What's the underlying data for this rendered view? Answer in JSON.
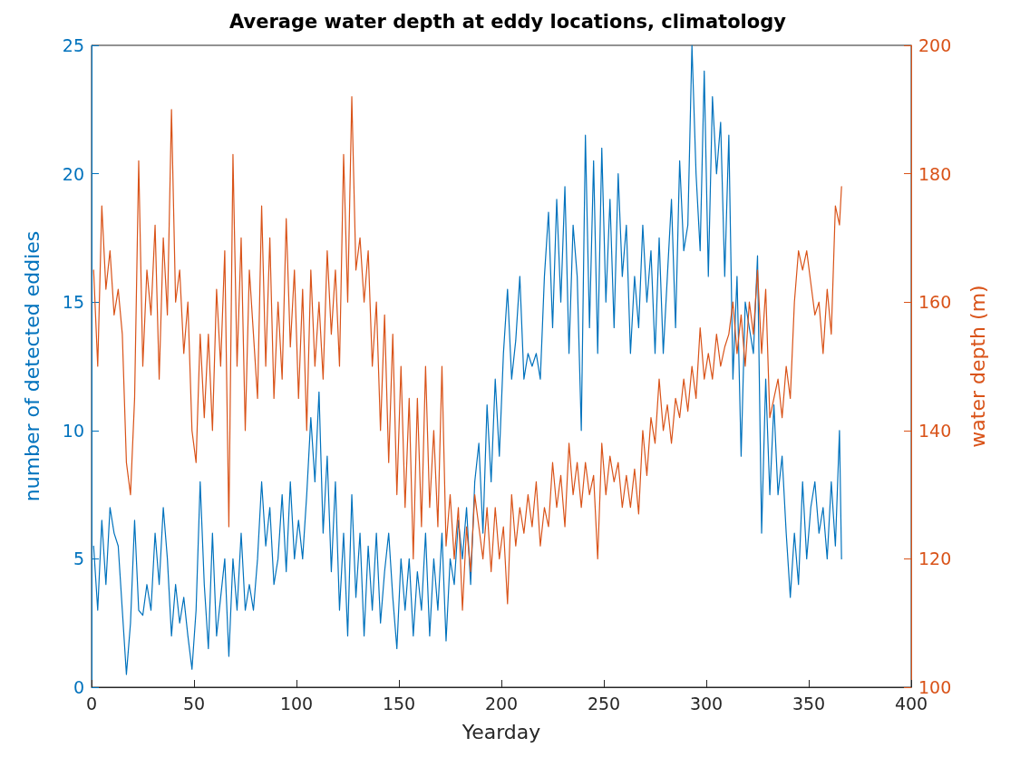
{
  "chart_data": {
    "type": "line",
    "title": "Average water depth at eddy locations, climatology",
    "xlabel": "Yearday",
    "ylabel": "number of detected eddies",
    "y2label": "water depth (m)",
    "x": [
      1,
      3,
      5,
      7,
      9,
      11,
      13,
      15,
      17,
      19,
      21,
      23,
      25,
      27,
      29,
      31,
      33,
      35,
      37,
      39,
      41,
      43,
      45,
      47,
      49,
      51,
      53,
      55,
      57,
      59,
      61,
      63,
      65,
      67,
      69,
      71,
      73,
      75,
      77,
      79,
      81,
      83,
      85,
      87,
      89,
      91,
      93,
      95,
      97,
      99,
      101,
      103,
      105,
      107,
      109,
      111,
      113,
      115,
      117,
      119,
      121,
      123,
      125,
      127,
      129,
      131,
      133,
      135,
      137,
      139,
      141,
      143,
      145,
      147,
      149,
      151,
      153,
      155,
      157,
      159,
      161,
      163,
      165,
      167,
      169,
      171,
      173,
      175,
      177,
      179,
      181,
      183,
      185,
      187,
      189,
      191,
      193,
      195,
      197,
      199,
      201,
      203,
      205,
      207,
      209,
      211,
      213,
      215,
      217,
      219,
      221,
      223,
      225,
      227,
      229,
      231,
      233,
      235,
      237,
      239,
      241,
      243,
      245,
      247,
      249,
      251,
      253,
      255,
      257,
      259,
      261,
      263,
      265,
      267,
      269,
      271,
      273,
      275,
      277,
      279,
      281,
      283,
      285,
      287,
      289,
      291,
      293,
      295,
      297,
      299,
      301,
      303,
      305,
      307,
      309,
      311,
      313,
      315,
      317,
      319,
      321,
      323,
      325,
      327,
      329,
      331,
      333,
      335,
      337,
      339,
      341,
      343,
      345,
      347,
      349,
      351,
      353,
      355,
      357,
      359,
      361,
      363,
      365,
      366
    ],
    "series": [
      {
        "color": "#0072bd",
        "values": [
          5.5,
          3,
          6.5,
          4,
          7,
          6,
          5.5,
          3,
          0.5,
          2.5,
          6.5,
          3,
          2.8,
          4,
          3,
          6,
          4,
          7,
          5,
          2,
          4,
          2.5,
          3.5,
          2,
          0.7,
          3,
          8,
          4,
          1.5,
          6,
          2,
          3.5,
          5,
          1.2,
          5,
          3,
          6,
          3,
          4,
          3,
          5,
          8,
          5.5,
          7,
          4,
          5,
          7.5,
          4.5,
          8,
          5,
          6.5,
          5,
          7.5,
          10.5,
          8,
          11.5,
          6,
          9,
          4.5,
          8,
          3,
          6,
          2,
          7.5,
          3.5,
          6,
          2,
          5.5,
          3,
          6,
          2.5,
          4.5,
          6,
          3.5,
          1.5,
          5,
          3,
          5,
          2,
          4.5,
          3,
          6,
          2,
          5,
          3,
          6,
          1.8,
          5,
          4,
          6.5,
          5,
          7,
          4,
          8,
          9.5,
          6,
          11,
          8,
          12,
          9,
          13,
          15.5,
          12,
          13.5,
          16,
          12,
          13,
          12.5,
          13,
          12,
          16,
          18.5,
          14,
          19,
          15,
          19.5,
          13,
          18,
          16,
          10,
          21.5,
          14,
          20.5,
          13,
          21,
          15,
          19,
          14,
          20,
          16,
          18,
          13,
          16,
          14,
          18,
          15,
          17,
          13,
          17.5,
          13,
          16,
          19,
          14,
          20.5,
          17,
          18,
          25,
          20,
          17,
          24,
          16,
          23,
          20,
          22,
          16,
          21.5,
          12,
          16,
          9,
          15,
          14,
          13,
          16.8,
          6,
          12,
          7.5,
          11,
          7.5,
          9,
          6,
          3.5,
          6,
          4,
          8,
          5,
          7,
          8,
          6,
          7,
          5,
          8,
          5.5,
          10,
          5
        ]
      },
      {
        "color": "#d95319",
        "axis": "y2",
        "values": [
          165,
          150,
          175,
          162,
          168,
          158,
          162,
          155,
          135,
          130,
          145,
          182,
          150,
          165,
          158,
          172,
          148,
          170,
          158,
          190,
          160,
          165,
          152,
          160,
          140,
          135,
          155,
          142,
          155,
          140,
          162,
          150,
          168,
          125,
          183,
          150,
          170,
          140,
          165,
          155,
          145,
          175,
          150,
          170,
          145,
          160,
          148,
          173,
          153,
          165,
          145,
          162,
          140,
          165,
          150,
          160,
          148,
          168,
          155,
          165,
          150,
          183,
          160,
          192,
          165,
          170,
          160,
          168,
          150,
          160,
          140,
          158,
          135,
          155,
          130,
          150,
          128,
          145,
          120,
          145,
          125,
          150,
          128,
          140,
          125,
          150,
          122,
          130,
          120,
          128,
          112,
          125,
          118,
          130,
          125,
          120,
          128,
          118,
          128,
          120,
          125,
          113,
          130,
          122,
          128,
          124,
          130,
          125,
          132,
          122,
          128,
          125,
          135,
          128,
          133,
          125,
          138,
          130,
          135,
          128,
          135,
          130,
          133,
          120,
          138,
          130,
          136,
          132,
          135,
          128,
          133,
          128,
          134,
          127,
          140,
          133,
          142,
          138,
          148,
          140,
          144,
          138,
          145,
          142,
          148,
          143,
          150,
          145,
          156,
          148,
          152,
          148,
          155,
          150,
          153,
          155,
          160,
          152,
          158,
          150,
          160,
          155,
          165,
          152,
          162,
          142,
          145,
          148,
          142,
          150,
          145,
          160,
          168,
          165,
          168,
          163,
          158,
          160,
          152,
          162,
          155,
          175,
          172,
          178
        ]
      }
    ],
    "xlim": [
      0,
      400
    ],
    "xticks": [
      0,
      50,
      100,
      150,
      200,
      250,
      300,
      350,
      400
    ],
    "ylim": [
      0,
      25
    ],
    "yticks": [
      0,
      5,
      10,
      15,
      20,
      25
    ],
    "y2lim": [
      100,
      200
    ],
    "y2ticks": [
      100,
      120,
      140,
      160,
      180,
      200
    ],
    "marker": "none",
    "line_style": "solid"
  }
}
